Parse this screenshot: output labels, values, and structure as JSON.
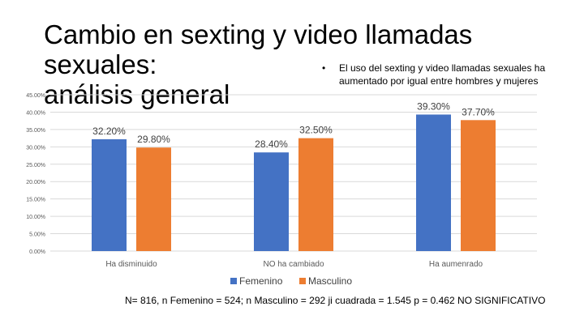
{
  "slide": {
    "title_line1": "Cambio en sexting y video llamadas sexuales:",
    "title_line2": "análisis general",
    "bullet": "El uso del sexting y video llamadas sexuales ha aumentado por igual entre hombres y mujeres",
    "footer": "N=  816,  n Femenino = 524; n Masculino = 292  ji cuadrada = 1.545 p = 0.462 NO SIGNIFICATIVO"
  },
  "chart_data": {
    "type": "bar",
    "categories": [
      "Ha disminuido",
      "NO ha cambiado",
      "Ha aumenrado"
    ],
    "series": [
      {
        "name": "Femenino",
        "values": [
          32.2,
          28.4,
          39.3
        ],
        "labels": [
          "32.20%",
          "28.40%",
          "39.30%"
        ],
        "color": "#4472C4"
      },
      {
        "name": "Masculino",
        "values": [
          29.8,
          32.5,
          37.7
        ],
        "labels": [
          "29.80%",
          "32.50%",
          "37.70%"
        ],
        "color": "#ED7D31"
      }
    ],
    "y_ticks": [
      "0.00%",
      "5.00%",
      "10.00%",
      "15.00%",
      "20.00%",
      "25.00%",
      "30.00%",
      "35.00%",
      "40.00%",
      "45.00%"
    ],
    "ylim": [
      0,
      45
    ],
    "grid": true,
    "legend_position": "bottom",
    "gridline_color": "#D9D9D9",
    "axis_text_color": "#595959"
  }
}
